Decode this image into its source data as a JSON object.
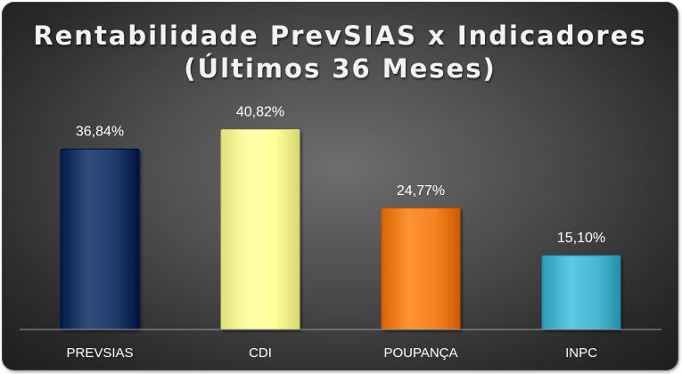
{
  "chart_data": {
    "type": "bar",
    "title": [
      "Rentabilidade PrevSIAS x Indicadores",
      "(Últimos 36 Meses)"
    ],
    "categories": [
      "PREVSIAS",
      "CDI",
      "POUPANÇA",
      "INPC"
    ],
    "values": [
      36.84,
      40.82,
      24.77,
      15.1
    ],
    "data_labels": [
      "36,84%",
      "40,82%",
      "24,77%",
      "15,10%"
    ],
    "colors": [
      "#1f3b6a",
      "#ffff99",
      "#f58220",
      "#4ab7d3"
    ],
    "ylim": [
      0,
      50
    ],
    "grid": false,
    "legend": "none",
    "xlabel": "",
    "ylabel": ""
  }
}
